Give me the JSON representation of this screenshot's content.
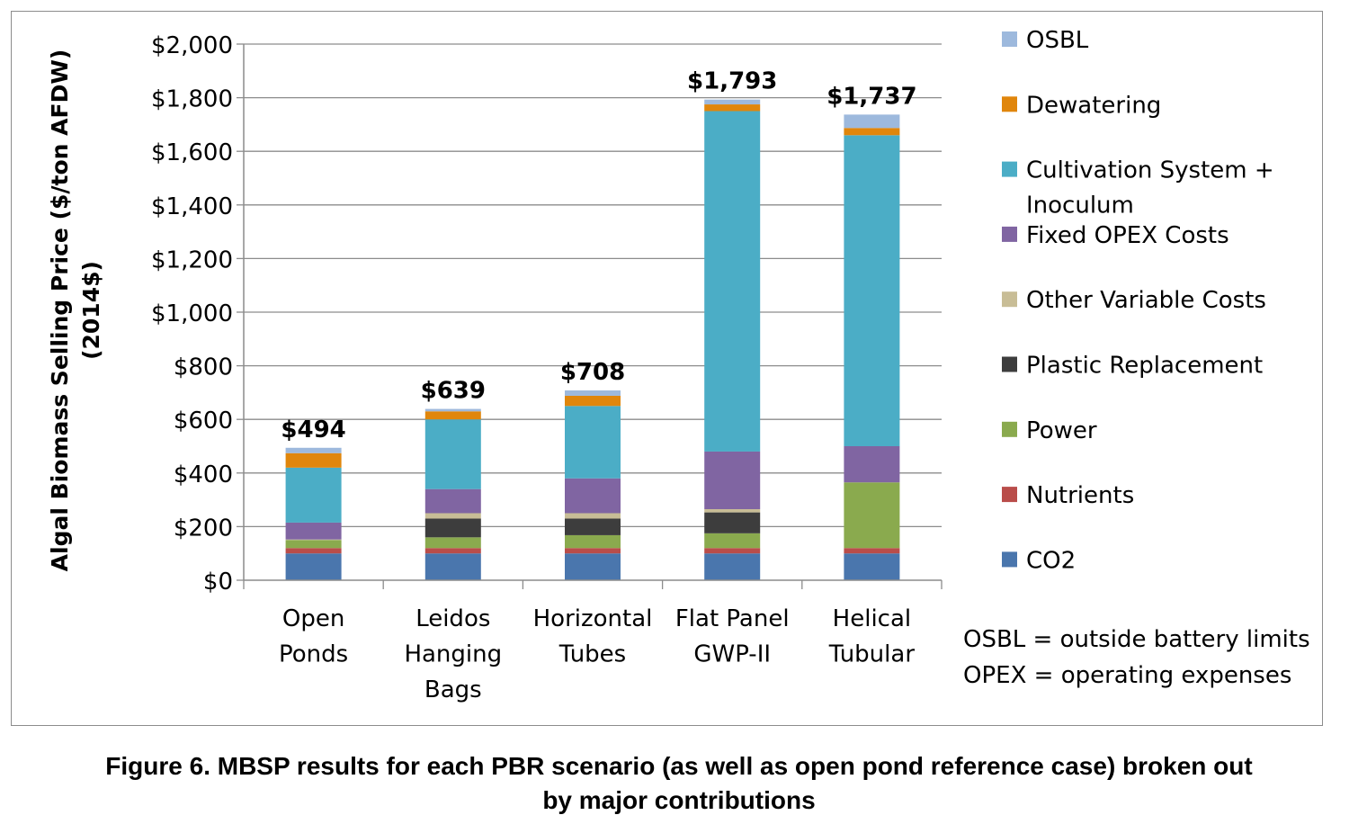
{
  "chart_data": {
    "type": "bar",
    "stacked": true,
    "ylabel": "Algal Biomass Selling Price ($/ton AFDW)",
    "ylabel_line2": "(2014$)",
    "ylim": [
      0,
      2000
    ],
    "yticks": [
      0,
      200,
      400,
      600,
      800,
      1000,
      1200,
      1400,
      1600,
      1800,
      2000
    ],
    "ytick_labels": [
      "$0",
      "$200",
      "$400",
      "$600",
      "$800",
      "$1,000",
      "$1,200",
      "$1,400",
      "$1,600",
      "$1,800",
      "$2,000"
    ],
    "grid": true,
    "legend_position": "right",
    "categories": [
      [
        "Open",
        "Ponds"
      ],
      [
        "Leidos",
        "Hanging",
        "Bags"
      ],
      [
        "Horizontal",
        "Tubes"
      ],
      [
        "Flat Panel",
        "GWP-II"
      ],
      [
        "Helical",
        "Tubular"
      ]
    ],
    "totals": [
      494,
      639,
      708,
      1793,
      1737
    ],
    "total_labels": [
      "$494",
      "$639",
      "$708",
      "$1,793",
      "$1,737"
    ],
    "series": [
      {
        "name": "CO2",
        "color": "#4a76ad",
        "values": [
          100,
          100,
          100,
          100,
          100
        ]
      },
      {
        "name": "Nutrients",
        "color": "#b94d4a",
        "values": [
          20,
          20,
          20,
          20,
          20
        ]
      },
      {
        "name": "Power",
        "color": "#8aaa4e",
        "values": [
          30,
          40,
          48,
          55,
          245
        ]
      },
      {
        "name": "Plastic Replacement",
        "color": "#3d3d3d",
        "values": [
          0,
          70,
          62,
          78,
          0
        ]
      },
      {
        "name": "Other Variable Costs",
        "color": "#c8bd96",
        "values": [
          2,
          20,
          20,
          12,
          0
        ]
      },
      {
        "name": "Fixed OPEX Costs",
        "color": "#8065a2",
        "values": [
          63,
          90,
          130,
          215,
          135
        ]
      },
      {
        "name": "Cultivation System + Inoculum",
        "color": "#4badc6",
        "values": [
          205,
          260,
          270,
          1270,
          1160
        ]
      },
      {
        "name": "Dewatering",
        "color": "#e0860c",
        "values": [
          54,
          30,
          38,
          25,
          27
        ]
      },
      {
        "name": "OSBL",
        "color": "#9db9dd",
        "values": [
          20,
          9,
          20,
          18,
          50
        ]
      }
    ],
    "legend_order": [
      "OSBL",
      "Dewatering",
      "Cultivation System + Inoculum",
      "Fixed OPEX Costs",
      "Other Variable Costs",
      "Plastic Replacement",
      "Power",
      "Nutrients",
      "CO2"
    ],
    "legend_labels": [
      [
        "OSBL"
      ],
      [
        "Dewatering"
      ],
      [
        "Cultivation System +",
        "Inoculum"
      ],
      [
        "Fixed OPEX Costs"
      ],
      [
        "Other Variable Costs"
      ],
      [
        "Plastic Replacement"
      ],
      [
        "Power"
      ],
      [
        "Nutrients"
      ],
      [
        "CO2"
      ]
    ],
    "notes": [
      "OSBL = outside battery limits",
      "OPEX = operating expenses"
    ]
  },
  "caption": {
    "line1": "Figure 6. MBSP results for each PBR scenario (as well as open pond reference case) broken out",
    "line2": "by major contributions"
  }
}
